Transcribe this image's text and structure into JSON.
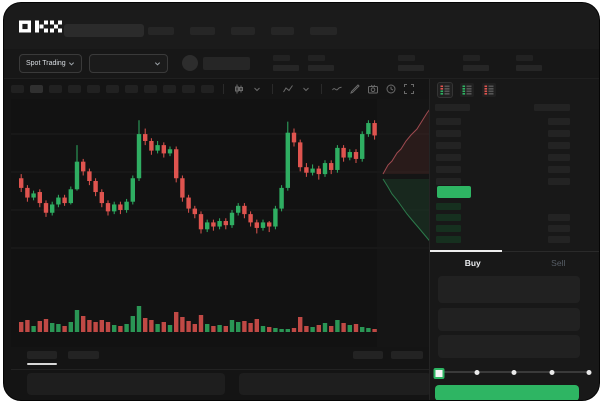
{
  "colors": {
    "accent_green": "#2eb563",
    "candle_green": "#2fae62",
    "candle_red": "#df544f",
    "bid_row_tint": "#16301f",
    "depth_sell_line": "#9e4a50",
    "depth_buy_line": "#2c7a4b",
    "grid_line": "#1f1f1f",
    "active_tab_text": "#eaecef",
    "inactive_tab_text": "#565d66"
  },
  "header": {
    "logo_text": "OKX",
    "nav_item_count": 5
  },
  "market_bar": {
    "market_selector_label": "Spot Trading",
    "stat_pair_count": 5
  },
  "chart_toolbar": {
    "timeframe_button_count": 11,
    "active_timeframe_index": 1,
    "right_icons": [
      "candle-style-icon",
      "chevron-down-icon",
      "indicators-icon",
      "chevron-down-icon",
      "line-tool-icon",
      "brush-icon",
      "camera-icon",
      "history-icon",
      "fullscreen-icon"
    ]
  },
  "chart_data": {
    "type": "candlestick",
    "title": "",
    "price_scale": {
      "min": 0,
      "max": 100
    },
    "grid": true,
    "candles": [
      [
        52,
        45,
        55,
        42
      ],
      [
        45,
        38,
        47,
        35
      ],
      [
        38,
        41,
        43,
        36
      ],
      [
        42,
        34,
        44,
        31
      ],
      [
        34,
        27,
        36,
        24
      ],
      [
        27,
        33,
        35,
        25
      ],
      [
        33,
        38,
        40,
        31
      ],
      [
        38,
        34,
        40,
        32
      ],
      [
        34,
        44,
        46,
        33
      ],
      [
        44,
        64,
        76,
        43
      ],
      [
        64,
        57,
        66,
        54
      ],
      [
        57,
        50,
        59,
        47
      ],
      [
        50,
        42,
        52,
        39
      ],
      [
        42,
        34,
        44,
        31
      ],
      [
        34,
        28,
        36,
        25
      ],
      [
        28,
        33,
        35,
        26
      ],
      [
        33,
        29,
        35,
        26
      ],
      [
        29,
        35,
        37,
        27
      ],
      [
        35,
        52,
        54,
        33
      ],
      [
        52,
        84,
        94,
        50
      ],
      [
        84,
        79,
        88,
        76
      ],
      [
        79,
        72,
        81,
        69
      ],
      [
        72,
        76,
        79,
        70
      ],
      [
        76,
        70,
        78,
        67
      ],
      [
        70,
        73,
        75,
        68
      ],
      [
        73,
        52,
        75,
        49
      ],
      [
        52,
        38,
        54,
        35
      ],
      [
        38,
        30,
        40,
        27
      ],
      [
        30,
        26,
        32,
        23
      ],
      [
        26,
        15,
        28,
        12
      ],
      [
        15,
        20,
        22,
        13
      ],
      [
        20,
        17,
        22,
        14
      ],
      [
        17,
        21,
        23,
        15
      ],
      [
        21,
        18,
        23,
        15
      ],
      [
        18,
        27,
        29,
        16
      ],
      [
        27,
        32,
        34,
        25
      ],
      [
        32,
        26,
        34,
        23
      ],
      [
        26,
        20,
        28,
        17
      ],
      [
        20,
        16,
        22,
        12
      ],
      [
        16,
        20,
        22,
        14
      ],
      [
        20,
        17,
        21,
        13
      ],
      [
        17,
        30,
        32,
        15
      ],
      [
        30,
        45,
        47,
        28
      ],
      [
        45,
        85,
        93,
        43
      ],
      [
        85,
        78,
        88,
        75
      ],
      [
        78,
        60,
        80,
        57
      ],
      [
        60,
        56,
        63,
        53
      ],
      [
        56,
        59,
        62,
        54
      ],
      [
        59,
        55,
        61,
        51
      ],
      [
        55,
        63,
        65,
        53
      ],
      [
        63,
        58,
        65,
        55
      ],
      [
        58,
        74,
        76,
        56
      ],
      [
        74,
        67,
        76,
        64
      ],
      [
        67,
        71,
        73,
        65
      ],
      [
        71,
        66,
        73,
        63
      ],
      [
        66,
        84,
        86,
        64
      ],
      [
        84,
        92,
        94,
        82
      ],
      [
        92,
        83,
        94,
        80
      ]
    ],
    "volume": [
      10,
      12,
      6,
      11,
      13,
      9,
      8,
      6,
      10,
      22,
      16,
      12,
      10,
      12,
      10,
      7,
      6,
      8,
      16,
      26,
      14,
      12,
      8,
      10,
      7,
      20,
      15,
      11,
      8,
      17,
      8,
      6,
      7,
      6,
      12,
      10,
      11,
      9,
      13,
      6,
      5,
      4,
      3,
      3,
      4,
      15,
      6,
      5,
      7,
      9,
      6,
      12,
      9,
      7,
      8,
      5,
      4,
      3
    ],
    "depth_overlay": {
      "sell": [
        [
          372,
          75
        ],
        [
          377,
          66
        ],
        [
          381,
          62
        ],
        [
          386,
          54
        ],
        [
          390,
          50
        ],
        [
          395,
          42
        ],
        [
          400,
          36
        ],
        [
          406,
          30
        ],
        [
          411,
          22
        ],
        [
          416,
          14
        ],
        [
          422,
          6
        ]
      ],
      "buy": [
        [
          372,
          80
        ],
        [
          377,
          88
        ],
        [
          381,
          95
        ],
        [
          386,
          101
        ],
        [
          391,
          108
        ],
        [
          396,
          115
        ],
        [
          401,
          121
        ],
        [
          407,
          128
        ],
        [
          412,
          134
        ],
        [
          417,
          140
        ],
        [
          422,
          146
        ]
      ]
    }
  },
  "order_book": {
    "view_toggle_icons": [
      "book-combined-icon",
      "book-bids-icon",
      "book-asks-icon"
    ],
    "selected_view_index": 0,
    "ask_row_count": 6,
    "bid_row_count": 4,
    "right_amount_row_count": 3,
    "last_price_direction": "up"
  },
  "trade_panel": {
    "buy_tab_label": "Buy",
    "sell_tab_label": "Sell",
    "active_tab": "Buy",
    "field_count": 3,
    "slider_stops_pct": [
      0,
      25,
      50,
      75,
      100
    ],
    "slider_value_pct": 0
  },
  "bottom_bar": {
    "left_tab_count": 2,
    "right_tab_count": 2,
    "active_tab_index": 0,
    "panel_count": 2
  }
}
